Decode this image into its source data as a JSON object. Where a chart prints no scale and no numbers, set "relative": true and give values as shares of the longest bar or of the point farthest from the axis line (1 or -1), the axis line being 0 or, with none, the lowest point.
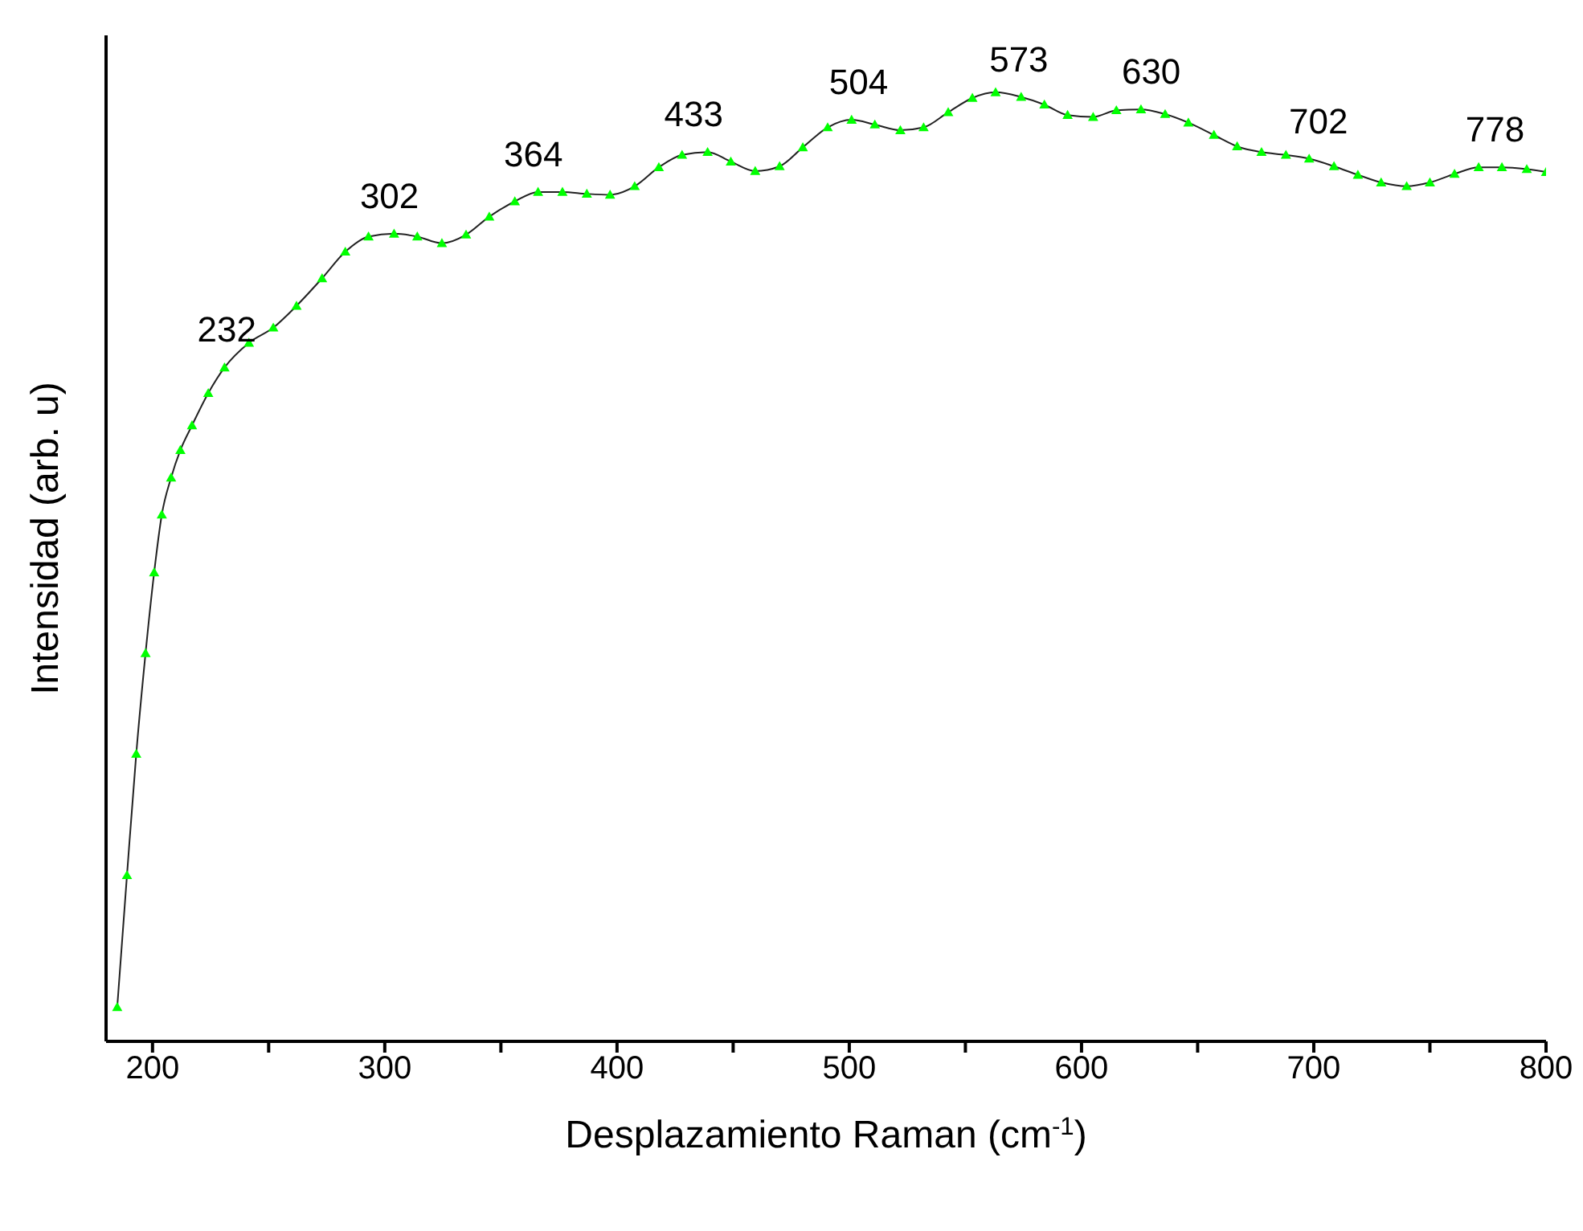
{
  "chart_data": {
    "type": "line",
    "relative": true,
    "xlabel": "Desplazamiento Raman (cm$^{-1}$)",
    "ylabel": "Intensidad (arb. u)",
    "xlim": [
      180,
      800
    ],
    "xticks": [
      200,
      {
        "value": 250,
        "label": null
      },
      300,
      {
        "value": 350,
        "label": null
      },
      400,
      {
        "value": 450,
        "label": null
      },
      500,
      {
        "value": 550,
        "label": null
      },
      600,
      {
        "value": 650,
        "label": null
      },
      700,
      {
        "value": 750,
        "label": null
      },
      800
    ],
    "marker": "triangle",
    "grid": false,
    "legend": false,
    "series": [
      {
        "color": "#00ff00",
        "x": [
          184.8,
          189,
          193,
          197,
          200.7,
          204,
          208,
          212,
          217,
          224,
          231,
          241.5,
          252,
          262,
          273,
          283,
          293,
          304,
          314,
          324.6,
          335,
          345,
          356,
          366,
          376.5,
          387,
          397,
          407.6,
          418,
          428,
          439,
          449,
          459.5,
          470,
          480,
          490.7,
          501,
          511,
          522,
          532,
          542.6,
          553,
          563,
          574,
          584,
          594,
          605,
          615,
          625.6,
          636,
          646,
          657,
          667,
          677.5,
          688,
          698,
          708.7,
          719,
          729,
          740,
          750,
          760.6,
          771,
          781,
          791.7,
          800
        ],
        "values": [
          0.036,
          0.175,
          0.303,
          0.409,
          0.494,
          0.555,
          0.594,
          0.623,
          0.649,
          0.683,
          0.71,
          0.736,
          0.752,
          0.775,
          0.804,
          0.832,
          0.848,
          0.851,
          0.848,
          0.841,
          0.85,
          0.869,
          0.885,
          0.895,
          0.895,
          0.893,
          0.892,
          0.901,
          0.921,
          0.934,
          0.937,
          0.927,
          0.917,
          0.922,
          0.942,
          0.963,
          0.971,
          0.966,
          0.96,
          0.963,
          0.979,
          0.994,
          1.0,
          0.995,
          0.987,
          0.976,
          0.974,
          0.981,
          0.982,
          0.977,
          0.968,
          0.955,
          0.943,
          0.937,
          0.934,
          0.93,
          0.922,
          0.913,
          0.905,
          0.901,
          0.905,
          0.914,
          0.921,
          0.921,
          0.919,
          0.916
        ]
      }
    ],
    "annotations": [
      {
        "text": "232",
        "x": 232,
        "y": 0.71
      },
      {
        "text": "302",
        "x": 302,
        "y": 0.851
      },
      {
        "text": "364",
        "x": 364,
        "y": 0.895
      },
      {
        "text": "433",
        "x": 433,
        "y": 0.937
      },
      {
        "text": "504",
        "x": 504,
        "y": 0.971
      },
      {
        "text": "573",
        "x": 573,
        "y": 0.995
      },
      {
        "text": "630",
        "x": 630,
        "y": 0.982
      },
      {
        "text": "702",
        "x": 702,
        "y": 0.93
      },
      {
        "text": "778",
        "x": 778,
        "y": 0.921
      }
    ]
  }
}
